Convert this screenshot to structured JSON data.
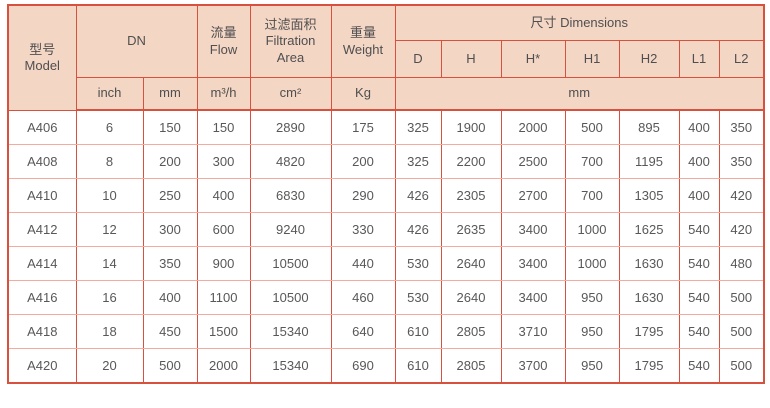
{
  "table": {
    "header": {
      "model_zh": "型号",
      "model_en": "Model",
      "dn_label": "DN",
      "flow_zh": "流量",
      "flow_en": "Flow",
      "filtration_zh": "过滤面积",
      "filtration_en_line1": "Filtration",
      "filtration_en_line2": "Area",
      "weight_zh": "重量",
      "weight_en": "Weight",
      "dimensions_label": "尺寸 Dimensions",
      "dim_columns": [
        "D",
        "H",
        "H*",
        "H1",
        "H2",
        "L1",
        "L2"
      ],
      "unit_inch": "inch",
      "unit_mm": "mm",
      "unit_flow": "m³/h",
      "unit_area": "cm²",
      "unit_weight": "Kg",
      "unit_dims": "mm"
    },
    "rows": [
      {
        "model": "A406",
        "dn_inch": "6",
        "dn_mm": "150",
        "flow": "150",
        "area": "2890",
        "weight": "175",
        "dims": [
          "325",
          "1900",
          "2000",
          "500",
          "895",
          "400",
          "350"
        ]
      },
      {
        "model": "A408",
        "dn_inch": "8",
        "dn_mm": "200",
        "flow": "300",
        "area": "4820",
        "weight": "200",
        "dims": [
          "325",
          "2200",
          "2500",
          "700",
          "1195",
          "400",
          "350"
        ]
      },
      {
        "model": "A410",
        "dn_inch": "10",
        "dn_mm": "250",
        "flow": "400",
        "area": "6830",
        "weight": "290",
        "dims": [
          "426",
          "2305",
          "2700",
          "700",
          "1305",
          "400",
          "420"
        ]
      },
      {
        "model": "A412",
        "dn_inch": "12",
        "dn_mm": "300",
        "flow": "600",
        "area": "9240",
        "weight": "330",
        "dims": [
          "426",
          "2635",
          "3400",
          "1000",
          "1625",
          "540",
          "420"
        ]
      },
      {
        "model": "A414",
        "dn_inch": "14",
        "dn_mm": "350",
        "flow": "900",
        "area": "10500",
        "weight": "440",
        "dims": [
          "530",
          "2640",
          "3400",
          "1000",
          "1630",
          "540",
          "480"
        ]
      },
      {
        "model": "A416",
        "dn_inch": "16",
        "dn_mm": "400",
        "flow": "1100",
        "area": "10500",
        "weight": "460",
        "dims": [
          "530",
          "2640",
          "3400",
          "950",
          "1630",
          "540",
          "500"
        ]
      },
      {
        "model": "A418",
        "dn_inch": "18",
        "dn_mm": "450",
        "flow": "1500",
        "area": "15340",
        "weight": "640",
        "dims": [
          "610",
          "2805",
          "3710",
          "950",
          "1795",
          "540",
          "500"
        ]
      },
      {
        "model": "A420",
        "dn_inch": "20",
        "dn_mm": "500",
        "flow": "2000",
        "area": "15340",
        "weight": "690",
        "dims": [
          "610",
          "2805",
          "3700",
          "950",
          "1795",
          "540",
          "500"
        ]
      }
    ]
  },
  "colors": {
    "border_strong": "#d8513f",
    "border_light": "#f2ab9e",
    "header_bg": "#f4d6c5",
    "text_header": "#4f4f4f",
    "text_data": "#58585a"
  }
}
